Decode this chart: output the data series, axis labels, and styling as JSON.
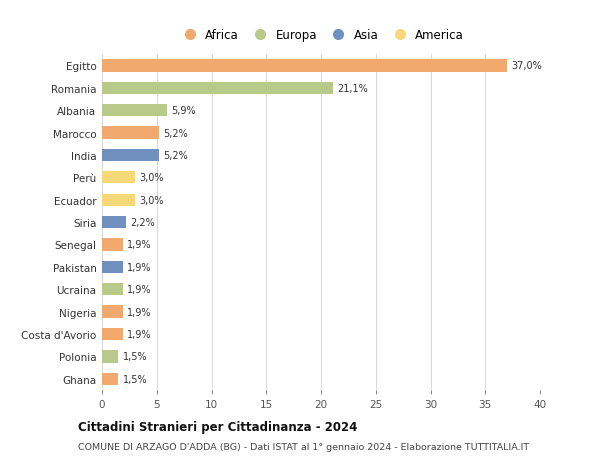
{
  "countries": [
    "Egitto",
    "Romania",
    "Albania",
    "Marocco",
    "India",
    "Perù",
    "Ecuador",
    "Siria",
    "Senegal",
    "Pakistan",
    "Ucraina",
    "Nigeria",
    "Costa d'Avorio",
    "Polonia",
    "Ghana"
  ],
  "values": [
    37.0,
    21.1,
    5.9,
    5.2,
    5.2,
    3.0,
    3.0,
    2.2,
    1.9,
    1.9,
    1.9,
    1.9,
    1.9,
    1.5,
    1.5
  ],
  "labels": [
    "37,0%",
    "21,1%",
    "5,9%",
    "5,2%",
    "5,2%",
    "3,0%",
    "3,0%",
    "2,2%",
    "1,9%",
    "1,9%",
    "1,9%",
    "1,9%",
    "1,9%",
    "1,5%",
    "1,5%"
  ],
  "continents": [
    "Africa",
    "Europa",
    "Europa",
    "Africa",
    "Asia",
    "America",
    "America",
    "Asia",
    "Africa",
    "Asia",
    "Europa",
    "Africa",
    "Africa",
    "Europa",
    "Africa"
  ],
  "colors": {
    "Africa": "#F2A96E",
    "Europa": "#B8C98A",
    "Asia": "#7090C0",
    "America": "#F5D878"
  },
  "legend_order": [
    "Africa",
    "Europa",
    "Asia",
    "America"
  ],
  "title": "Cittadini Stranieri per Cittadinanza - 2024",
  "subtitle": "COMUNE DI ARZAGO D'ADDA (BG) - Dati ISTAT al 1° gennaio 2024 - Elaborazione TUTTITALIA.IT",
  "xlim": [
    0,
    40
  ],
  "xticks": [
    0,
    5,
    10,
    15,
    20,
    25,
    30,
    35,
    40
  ],
  "bg_color": "#ffffff",
  "plot_bg_color": "#ffffff",
  "grid_color": "#d8d8d8",
  "bar_height": 0.55
}
